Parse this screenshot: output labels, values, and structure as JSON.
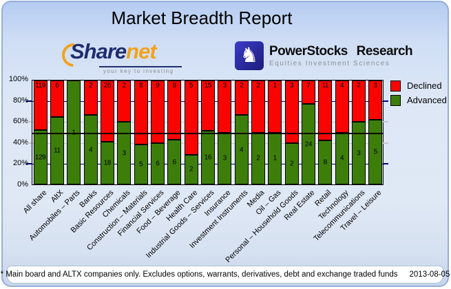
{
  "title": "Market Breadth Report",
  "logos": {
    "sharenet": {
      "wordmark_part1": "Share",
      "wordmark_part2": "net",
      "tagline": "your key to investing"
    },
    "powerstocks": {
      "icon": "knight-icon",
      "knight_glyph": "♞",
      "line1": "PowerStocks Research",
      "line2": "Equities Investment Sciences"
    }
  },
  "chart_data": {
    "type": "bar",
    "stacked": true,
    "normalized_to_percent": true,
    "title": "Market Breadth Report",
    "categories": [
      "All share",
      "AltX",
      "Automobiles – Parts",
      "Banks",
      "Basic Resources",
      "Chemicals",
      "Construction – Materials",
      "Financial Services",
      "Food – Beverage",
      "Health Care",
      "Industrial Goods – Services",
      "Insurance",
      "Investment Instruments",
      "Media",
      "Oil – Gas",
      "Personal – Household Goods",
      "Real Estate",
      "Retail",
      "Technology",
      "Telecommunications",
      "Travel – Leisure"
    ],
    "series": [
      {
        "name": "Declined",
        "color": "#fa0400",
        "values": [
          119,
          6,
          0,
          2,
          26,
          2,
          8,
          9,
          8,
          5,
          15,
          3,
          2,
          2,
          1,
          3,
          7,
          11,
          4,
          2,
          3
        ]
      },
      {
        "name": "Advanced",
        "color": "#3d7e0b",
        "values": [
          129,
          11,
          1,
          4,
          18,
          3,
          5,
          6,
          6,
          2,
          16,
          3,
          4,
          2,
          1,
          2,
          24,
          8,
          4,
          3,
          5
        ]
      }
    ],
    "y_axis": {
      "tick_labels": [
        "0%",
        "20%",
        "40%",
        "60%",
        "80%",
        "100%"
      ],
      "min": 0,
      "max": 100
    },
    "reference_line_percent": 50,
    "legend_position": "top-right",
    "grid": true
  },
  "legend": [
    {
      "label": "Declined",
      "color": "#fa0400"
    },
    {
      "label": "Advanced",
      "color": "#3d7e0b"
    }
  ],
  "footer": {
    "note": "* Main board and ALTX companies only. Excludes options, warrants, derivatives, debt and exchange traded funds",
    "date": "2013-08-05"
  }
}
